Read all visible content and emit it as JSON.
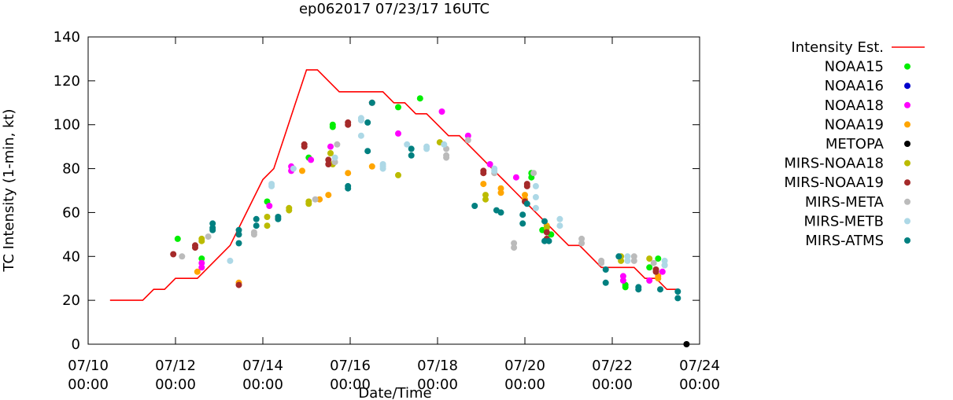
{
  "chart_data": {
    "type": "scatter",
    "title": "ep062017 07/23/17 16UTC",
    "xlabel": "Date/Time",
    "ylabel": "TC Intensity (1-min, kt)",
    "xlim": [
      0,
      14
    ],
    "ylim": [
      0,
      140
    ],
    "yticks": [
      0,
      20,
      40,
      60,
      80,
      100,
      120,
      140
    ],
    "xticks": [
      {
        "day": 0,
        "line1": "07/10",
        "line2": "00:00"
      },
      {
        "day": 2,
        "line1": "07/12",
        "line2": "00:00"
      },
      {
        "day": 4,
        "line1": "07/14",
        "line2": "00:00"
      },
      {
        "day": 6,
        "line1": "07/16",
        "line2": "00:00"
      },
      {
        "day": 8,
        "line1": "07/18",
        "line2": "00:00"
      },
      {
        "day": 10,
        "line1": "07/20",
        "line2": "00:00"
      },
      {
        "day": 12,
        "line1": "07/22",
        "line2": "00:00"
      },
      {
        "day": 14,
        "line1": "07/24",
        "line2": "00:00"
      }
    ],
    "line_series": {
      "name": "Intensity Est.",
      "color": "#ff0000",
      "x": [
        0.5,
        1.25,
        1.5,
        1.75,
        2.0,
        2.5,
        3.0,
        3.25,
        3.5,
        3.75,
        4.0,
        4.25,
        4.5,
        4.75,
        5.0,
        5.25,
        5.5,
        5.75,
        6.0,
        6.25,
        6.5,
        6.75,
        7.0,
        7.25,
        7.5,
        7.75,
        8.0,
        8.25,
        8.5,
        8.75,
        9.0,
        9.25,
        9.5,
        9.75,
        10.0,
        10.25,
        10.5,
        10.75,
        11.0,
        11.25,
        11.5,
        11.75,
        12.0,
        12.25,
        12.5,
        12.75,
        13.0,
        13.25,
        13.5
      ],
      "y": [
        20,
        20,
        25,
        25,
        30,
        30,
        40,
        45,
        55,
        65,
        75,
        80,
        95,
        110,
        125,
        125,
        120,
        115,
        115,
        115,
        115,
        115,
        110,
        110,
        105,
        105,
        100,
        95,
        95,
        90,
        85,
        80,
        75,
        70,
        65,
        60,
        55,
        50,
        45,
        45,
        40,
        35,
        35,
        35,
        35,
        30,
        30,
        25,
        25
      ]
    },
    "series": [
      {
        "name": "NOAA15",
        "color": "#00ee00",
        "points": [
          [
            2.05,
            48
          ],
          [
            2.6,
            39
          ],
          [
            4.1,
            65
          ],
          [
            5.05,
            85
          ],
          [
            5.6,
            100
          ],
          [
            5.6,
            99
          ],
          [
            7.1,
            108
          ],
          [
            7.6,
            112
          ],
          [
            10.15,
            78
          ],
          [
            10.15,
            76
          ],
          [
            10.4,
            52
          ],
          [
            10.6,
            50
          ],
          [
            12.3,
            27
          ],
          [
            12.3,
            26
          ],
          [
            12.85,
            35
          ],
          [
            13.05,
            39
          ]
        ]
      },
      {
        "name": "NOAA16",
        "color": "#0000cc",
        "points": []
      },
      {
        "name": "NOAA18",
        "color": "#ff00ff",
        "points": [
          [
            2.6,
            37
          ],
          [
            2.6,
            35
          ],
          [
            4.15,
            63
          ],
          [
            4.65,
            81
          ],
          [
            4.65,
            79
          ],
          [
            5.1,
            84
          ],
          [
            5.55,
            90
          ],
          [
            7.1,
            96
          ],
          [
            8.1,
            106
          ],
          [
            8.7,
            95
          ],
          [
            9.2,
            82
          ],
          [
            9.8,
            76
          ],
          [
            12.25,
            31
          ],
          [
            12.25,
            29
          ],
          [
            12.85,
            29
          ],
          [
            13.15,
            33
          ]
        ]
      },
      {
        "name": "NOAA19",
        "color": "#ffa500",
        "points": [
          [
            2.5,
            33
          ],
          [
            3.45,
            28
          ],
          [
            4.9,
            79
          ],
          [
            5.3,
            66
          ],
          [
            5.5,
            68
          ],
          [
            5.95,
            78
          ],
          [
            6.5,
            81
          ],
          [
            9.05,
            73
          ],
          [
            9.45,
            71
          ],
          [
            9.45,
            69
          ],
          [
            10.0,
            68
          ],
          [
            10.0,
            66
          ],
          [
            10.5,
            54
          ],
          [
            13.05,
            31
          ],
          [
            13.05,
            30
          ]
        ]
      },
      {
        "name": "METOPA",
        "color": "#000000",
        "points": [
          [
            13.7,
            0
          ]
        ]
      },
      {
        "name": "MIRS-NOAA18",
        "color": "#bbbb00",
        "points": [
          [
            2.6,
            48
          ],
          [
            2.6,
            47
          ],
          [
            4.1,
            58
          ],
          [
            4.1,
            54
          ],
          [
            4.6,
            62
          ],
          [
            4.6,
            61
          ],
          [
            5.05,
            65
          ],
          [
            5.05,
            64
          ],
          [
            5.55,
            87
          ],
          [
            5.6,
            82
          ],
          [
            7.1,
            77
          ],
          [
            8.05,
            92
          ],
          [
            9.1,
            68
          ],
          [
            9.1,
            66
          ],
          [
            10.5,
            53
          ],
          [
            12.2,
            40
          ],
          [
            12.2,
            38
          ],
          [
            12.85,
            39
          ]
        ]
      },
      {
        "name": "MIRS-NOAA19",
        "color": "#a52a2a",
        "points": [
          [
            1.95,
            41
          ],
          [
            2.45,
            45
          ],
          [
            2.45,
            44
          ],
          [
            3.45,
            27
          ],
          [
            4.95,
            91
          ],
          [
            4.95,
            90
          ],
          [
            5.5,
            84
          ],
          [
            5.5,
            82
          ],
          [
            5.95,
            101
          ],
          [
            5.95,
            100
          ],
          [
            6.5,
            110
          ],
          [
            9.05,
            79
          ],
          [
            9.05,
            78
          ],
          [
            10.05,
            73
          ],
          [
            10.05,
            72
          ],
          [
            10.0,
            65
          ],
          [
            10.5,
            51
          ],
          [
            10.5,
            48
          ],
          [
            13.0,
            34
          ],
          [
            13.0,
            33
          ]
        ]
      },
      {
        "name": "MIRS-META",
        "color": "#bbbbbb",
        "points": [
          [
            2.15,
            40
          ],
          [
            2.75,
            49
          ],
          [
            3.8,
            51
          ],
          [
            3.8,
            50
          ],
          [
            5.2,
            66
          ],
          [
            5.65,
            83
          ],
          [
            5.7,
            91
          ],
          [
            8.2,
            89
          ],
          [
            8.2,
            86
          ],
          [
            8.2,
            85
          ],
          [
            8.7,
            93
          ],
          [
            9.3,
            78
          ],
          [
            9.75,
            46
          ],
          [
            9.75,
            44
          ],
          [
            10.2,
            78
          ],
          [
            11.3,
            48
          ],
          [
            11.3,
            46
          ],
          [
            11.75,
            38
          ],
          [
            11.75,
            37
          ],
          [
            12.5,
            40
          ],
          [
            12.5,
            38
          ],
          [
            12.95,
            37
          ],
          [
            13.2,
            36
          ]
        ]
      },
      {
        "name": "MIRS-METB",
        "color": "#add8e6",
        "points": [
          [
            3.25,
            38
          ],
          [
            4.2,
            73
          ],
          [
            4.2,
            72
          ],
          [
            4.7,
            80
          ],
          [
            5.65,
            85
          ],
          [
            6.25,
            103
          ],
          [
            6.25,
            102
          ],
          [
            6.25,
            95
          ],
          [
            6.75,
            82
          ],
          [
            6.75,
            81
          ],
          [
            6.75,
            80
          ],
          [
            7.3,
            91
          ],
          [
            7.75,
            90
          ],
          [
            7.75,
            89
          ],
          [
            8.15,
            91
          ],
          [
            9.3,
            80
          ],
          [
            9.3,
            79
          ],
          [
            10.25,
            72
          ],
          [
            10.25,
            67
          ],
          [
            10.25,
            62
          ],
          [
            10.8,
            57
          ],
          [
            10.8,
            54
          ],
          [
            12.35,
            40
          ],
          [
            12.35,
            38
          ],
          [
            13.2,
            38
          ],
          [
            13.2,
            36
          ]
        ]
      },
      {
        "name": "MIRS-ATMS",
        "color": "#008080",
        "points": [
          [
            2.85,
            55
          ],
          [
            2.85,
            53
          ],
          [
            2.85,
            52
          ],
          [
            3.45,
            52
          ],
          [
            3.45,
            50
          ],
          [
            3.45,
            46
          ],
          [
            3.85,
            57
          ],
          [
            3.85,
            54
          ],
          [
            4.35,
            58
          ],
          [
            4.35,
            57
          ],
          [
            5.95,
            72
          ],
          [
            5.95,
            71
          ],
          [
            6.4,
            101
          ],
          [
            6.4,
            88
          ],
          [
            6.5,
            110
          ],
          [
            7.4,
            89
          ],
          [
            7.4,
            86
          ],
          [
            8.85,
            63
          ],
          [
            9.35,
            61
          ],
          [
            9.45,
            60
          ],
          [
            9.95,
            59
          ],
          [
            9.95,
            55
          ],
          [
            10.05,
            64
          ],
          [
            10.45,
            56
          ],
          [
            10.45,
            47
          ],
          [
            10.55,
            47
          ],
          [
            11.85,
            34
          ],
          [
            11.85,
            28
          ],
          [
            12.15,
            40
          ],
          [
            12.6,
            26
          ],
          [
            12.6,
            25
          ],
          [
            13.1,
            25
          ],
          [
            13.5,
            24
          ],
          [
            13.5,
            21
          ]
        ]
      }
    ]
  }
}
